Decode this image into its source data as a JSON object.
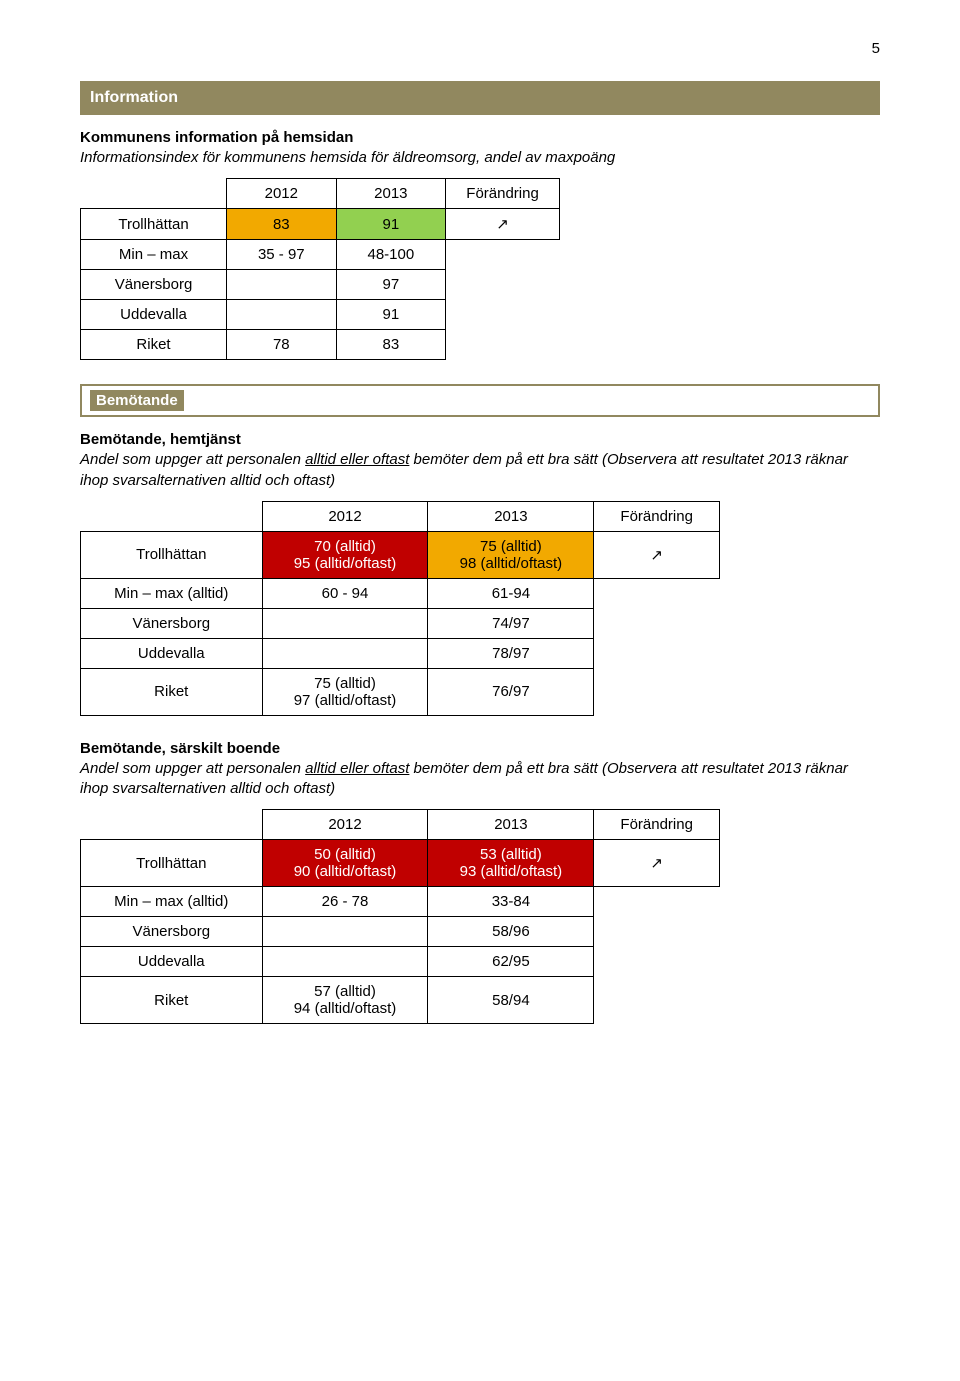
{
  "page_number": "5",
  "sections": {
    "information": {
      "header": "Information",
      "subtitle": "Kommunens information på hemsidan",
      "description": "Informationsindex för kommunens hemsida för äldreomsorg, andel av maxpoäng",
      "table": {
        "headers": {
          "c2": "2012",
          "c3": "2013",
          "c4": "Förändring"
        },
        "rows": {
          "trollhattan": {
            "label": "Trollhättan",
            "c2": "83",
            "c3": "91",
            "c4": "↗"
          },
          "minmax": {
            "label": "Min – max",
            "c2": "35 - 97",
            "c3": "48-100"
          },
          "vanersborg": {
            "label": "Vänersborg",
            "c3": "97"
          },
          "uddevalla": {
            "label": "Uddevalla",
            "c3": "91"
          },
          "riket": {
            "label": "Riket",
            "c2": "78",
            "c3": "83"
          }
        }
      }
    },
    "bemotande": {
      "header": "Bemötande",
      "hemtjanst": {
        "subtitle": "Bemötande, hemtjänst",
        "description": "Andel som uppger att personalen alltid eller oftast bemöter dem på ett bra sätt (Observera att resultatet 2013 räknar ihop svarsalternativen alltid och oftast)",
        "description_underline": "alltid eller oftast",
        "table": {
          "headers": {
            "c2": "2012",
            "c3": "2013",
            "c4": "Förändring"
          },
          "rows": {
            "trollhattan": {
              "label": "Trollhättan",
              "c2": "70 (alltid)\n95 (alltid/oftast)",
              "c3": "75 (alltid)\n98 (alltid/oftast)",
              "c4": "↗"
            },
            "minmax": {
              "label": "Min – max (alltid)",
              "c2": "60 - 94",
              "c3": "61-94"
            },
            "vanersborg": {
              "label": "Vänersborg",
              "c3": "74/97"
            },
            "uddevalla": {
              "label": "Uddevalla",
              "c3": "78/97"
            },
            "riket": {
              "label": "Riket",
              "c2": "75 (alltid)\n97 (alltid/oftast)",
              "c3": "76/97"
            }
          }
        }
      },
      "sarskilt": {
        "subtitle": "Bemötande, särskilt boende",
        "description": "Andel som uppger att personalen alltid eller oftast bemöter dem på ett bra sätt (Observera att resultatet 2013 räknar ihop svarsalternativen alltid och oftast)",
        "description_underline": "alltid eller oftast",
        "table": {
          "headers": {
            "c2": "2012",
            "c3": "2013",
            "c4": "Förändring"
          },
          "rows": {
            "trollhattan": {
              "label": "Trollhättan",
              "c2": "50 (alltid)\n90 (alltid/oftast)",
              "c3": "53 (alltid)\n93 (alltid/oftast)",
              "c4": "↗"
            },
            "minmax": {
              "label": "Min – max (alltid)",
              "c2": "26 - 78",
              "c3": "33-84"
            },
            "vanersborg": {
              "label": "Vänersborg",
              "c3": "58/96"
            },
            "uddevalla": {
              "label": "Uddevalla",
              "c3": "62/95"
            },
            "riket": {
              "label": "Riket",
              "c2": "57 (alltid)\n94 (alltid/oftast)",
              "c3": "58/94"
            }
          }
        }
      }
    }
  },
  "colors": {
    "section_bg": "#91885f",
    "orange": "#f2a900",
    "green": "#92d050",
    "red": "#c00000",
    "border": "#000000"
  }
}
